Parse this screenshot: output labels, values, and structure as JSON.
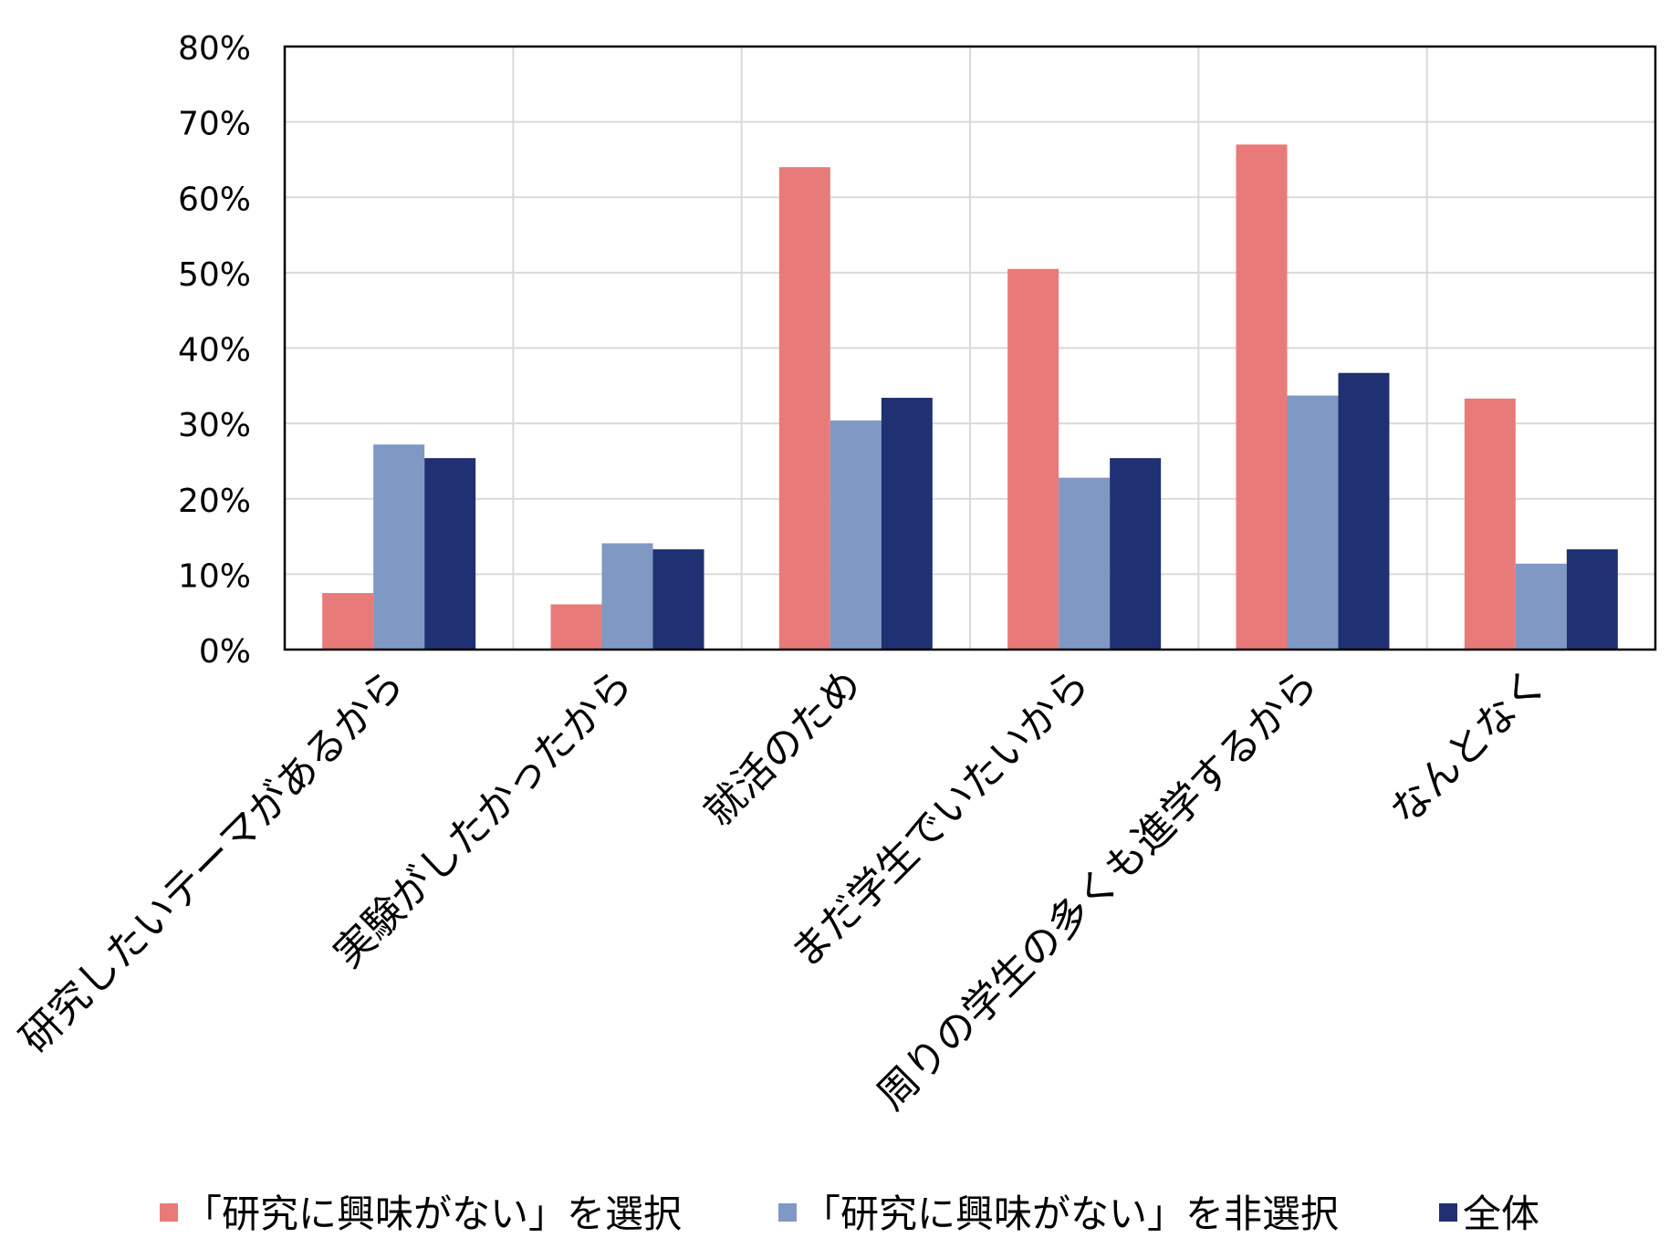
{
  "chart_data": {
    "type": "bar",
    "title": "",
    "xlabel": "",
    "ylabel": "",
    "ylim": [
      0,
      80
    ],
    "y_ticks": [
      "0%",
      "10%",
      "20%",
      "30%",
      "40%",
      "50%",
      "60%",
      "70%",
      "80%"
    ],
    "y_tick_values": [
      0,
      10,
      20,
      30,
      40,
      50,
      60,
      70,
      80
    ],
    "grid": true,
    "legend_position": "bottom",
    "categories": [
      "研究したいテーマがあるから",
      "実験がしたかったから",
      "就活のため",
      "まだ学生でいたいから",
      "周りの学生の多くも進学するから",
      "なんとなく"
    ],
    "series": [
      {
        "name": "「研究に興味がない」を選択",
        "color": "#E97A7A",
        "values": [
          7.5,
          6,
          64,
          50.5,
          67,
          33.3
        ]
      },
      {
        "name": "「研究に興味がない」を非選択",
        "color": "#8098C4",
        "values": [
          27.2,
          14.1,
          30.4,
          22.8,
          33.7,
          11.4
        ]
      },
      {
        "name": "全体",
        "color": "#1F3173",
        "values": [
          25.4,
          13.3,
          33.4,
          25.4,
          36.7,
          13.3
        ]
      }
    ]
  }
}
